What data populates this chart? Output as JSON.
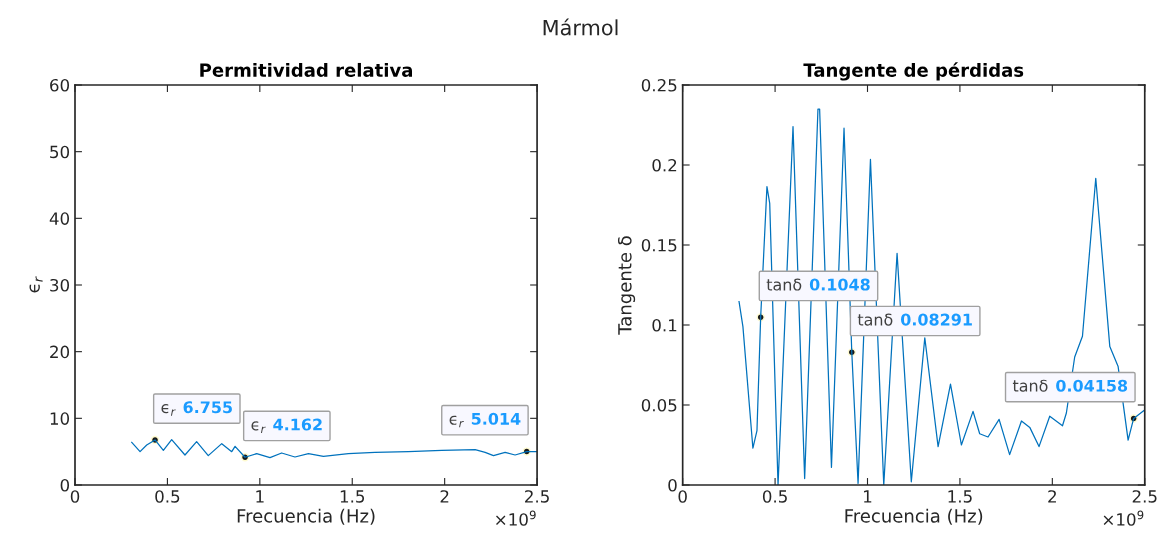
{
  "chart_data": [
    {
      "type": "line",
      "title": "Permitividad relativa",
      "xlabel": "Frecuencia (Hz)",
      "ylabel": "ϵ$_{r}$",
      "series": [
        {
          "color": "#0072bd",
          "x": [
            0.307,
            0.352,
            0.388,
            0.433,
            0.478,
            0.523,
            0.595,
            0.658,
            0.721,
            0.794,
            0.848,
            0.866,
            0.92,
            0.983,
            1.055,
            1.118,
            1.19,
            1.263,
            1.344,
            1.479,
            1.623,
            1.804,
            1.984,
            2.165,
            2.219,
            2.264,
            2.327,
            2.381,
            2.444,
            2.498
          ],
          "values": [
            6.4,
            5.0,
            6.0,
            6.755,
            5.2,
            6.8,
            4.5,
            6.5,
            4.4,
            6.2,
            5.0,
            5.8,
            4.162,
            4.7,
            4.1,
            4.8,
            4.2,
            4.7,
            4.3,
            4.7,
            4.9,
            5.0,
            5.2,
            5.3,
            4.9,
            4.4,
            4.9,
            4.5,
            5.014,
            5.0
          ]
        }
      ],
      "xlim": [
        0,
        2.5
      ],
      "xticks": [
        0,
        0.5,
        1,
        1.5,
        2,
        2.5
      ],
      "ylim": [
        0,
        60
      ],
      "yticks": [
        0,
        10,
        20,
        30,
        40,
        50,
        60
      ],
      "grid": false,
      "marker": "none",
      "line_style": "solid",
      "annotations": [
        {
          "text": "ϵ$_{r}$ 6.755",
          "x": 0.433,
          "y": 6.755
        },
        {
          "text": "ϵ$_{r}$ 4.162",
          "x": 0.92,
          "y": 4.162
        },
        {
          "text": "ϵ$_{r}$ 5.014",
          "x": 2.444,
          "y": 5.014
        },
        "×10$^{9}$",
        "Mármol"
      ]
    },
    {
      "type": "line",
      "title": "Tangente de pérdidas",
      "xlabel": "Frecuencia (Hz)",
      "ylabel": "Tangente δ",
      "series": [
        {
          "color": "#0072bd",
          "x": [
            0.305,
            0.326,
            0.38,
            0.402,
            0.422,
            0.456,
            0.471,
            0.516,
            0.597,
            0.66,
            0.732,
            0.741,
            0.805,
            0.873,
            0.915,
            0.949,
            1.016,
            1.088,
            1.16,
            1.237,
            1.31,
            1.382,
            1.449,
            1.508,
            1.571,
            1.607,
            1.652,
            1.712,
            1.769,
            1.833,
            1.878,
            1.928,
            1.986,
            2.055,
            2.076,
            2.121,
            2.163,
            2.235,
            2.311,
            2.356,
            2.41,
            2.44,
            2.5
          ],
          "values": [
            0.1146,
            0.099,
            0.023,
            0.034,
            0.1048,
            0.1865,
            0.176,
            0.0,
            0.224,
            0.004,
            0.235,
            0.235,
            0.011,
            0.223,
            0.08291,
            0.001,
            0.2035,
            0.0,
            0.1448,
            0.002,
            0.092,
            0.024,
            0.063,
            0.025,
            0.046,
            0.032,
            0.03,
            0.041,
            0.019,
            0.04,
            0.036,
            0.024,
            0.043,
            0.037,
            0.045,
            0.08,
            0.093,
            0.1917,
            0.0865,
            0.074,
            0.028,
            0.04158,
            0.047
          ]
        }
      ],
      "xlim": [
        0,
        2.5
      ],
      "xticks": [
        0,
        0.5,
        1,
        1.5,
        2,
        2.5
      ],
      "ylim": [
        0,
        0.25
      ],
      "yticks": [
        0,
        0.05,
        0.1,
        0.15,
        0.2,
        0.25
      ],
      "grid": false,
      "marker": "none",
      "line_style": "solid",
      "annotations": [
        {
          "text": "tanδ 0.1048",
          "x": 0.422,
          "y": 0.1048
        },
        {
          "text": "tanδ 0.08291",
          "x": 0.915,
          "y": 0.08291
        },
        {
          "text": "tanδ 0.04158",
          "x": 2.44,
          "y": 0.04158
        },
        "×10$^{9}$"
      ]
    }
  ]
}
